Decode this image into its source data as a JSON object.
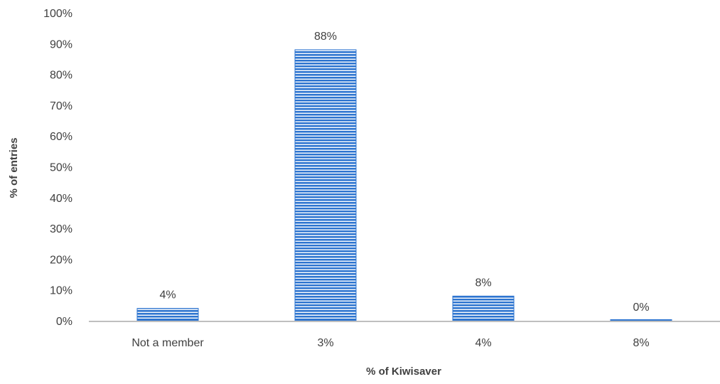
{
  "chart_data": {
    "type": "bar",
    "categories": [
      "Not a member",
      "3%",
      "4%",
      "8%"
    ],
    "values": [
      4,
      88,
      8,
      0
    ],
    "data_labels": [
      "4%",
      "88%",
      "8%",
      "0%"
    ],
    "xlabel": "% of Kiwisaver",
    "ylabel": "% of entries",
    "ylim": [
      0,
      100
    ],
    "y_ticks": [
      0,
      10,
      20,
      30,
      40,
      50,
      60,
      70,
      80,
      90,
      100
    ],
    "y_tick_labels": [
      "0%",
      "10%",
      "20%",
      "30%",
      "40%",
      "50%",
      "60%",
      "70%",
      "80%",
      "90%",
      "100%"
    ],
    "grid": false,
    "legend": "none",
    "bar_color": "#2e75d0",
    "bar_stripe_color": "#ffffff",
    "axis_color": "#bfbfbf",
    "text_color": "#404040"
  }
}
